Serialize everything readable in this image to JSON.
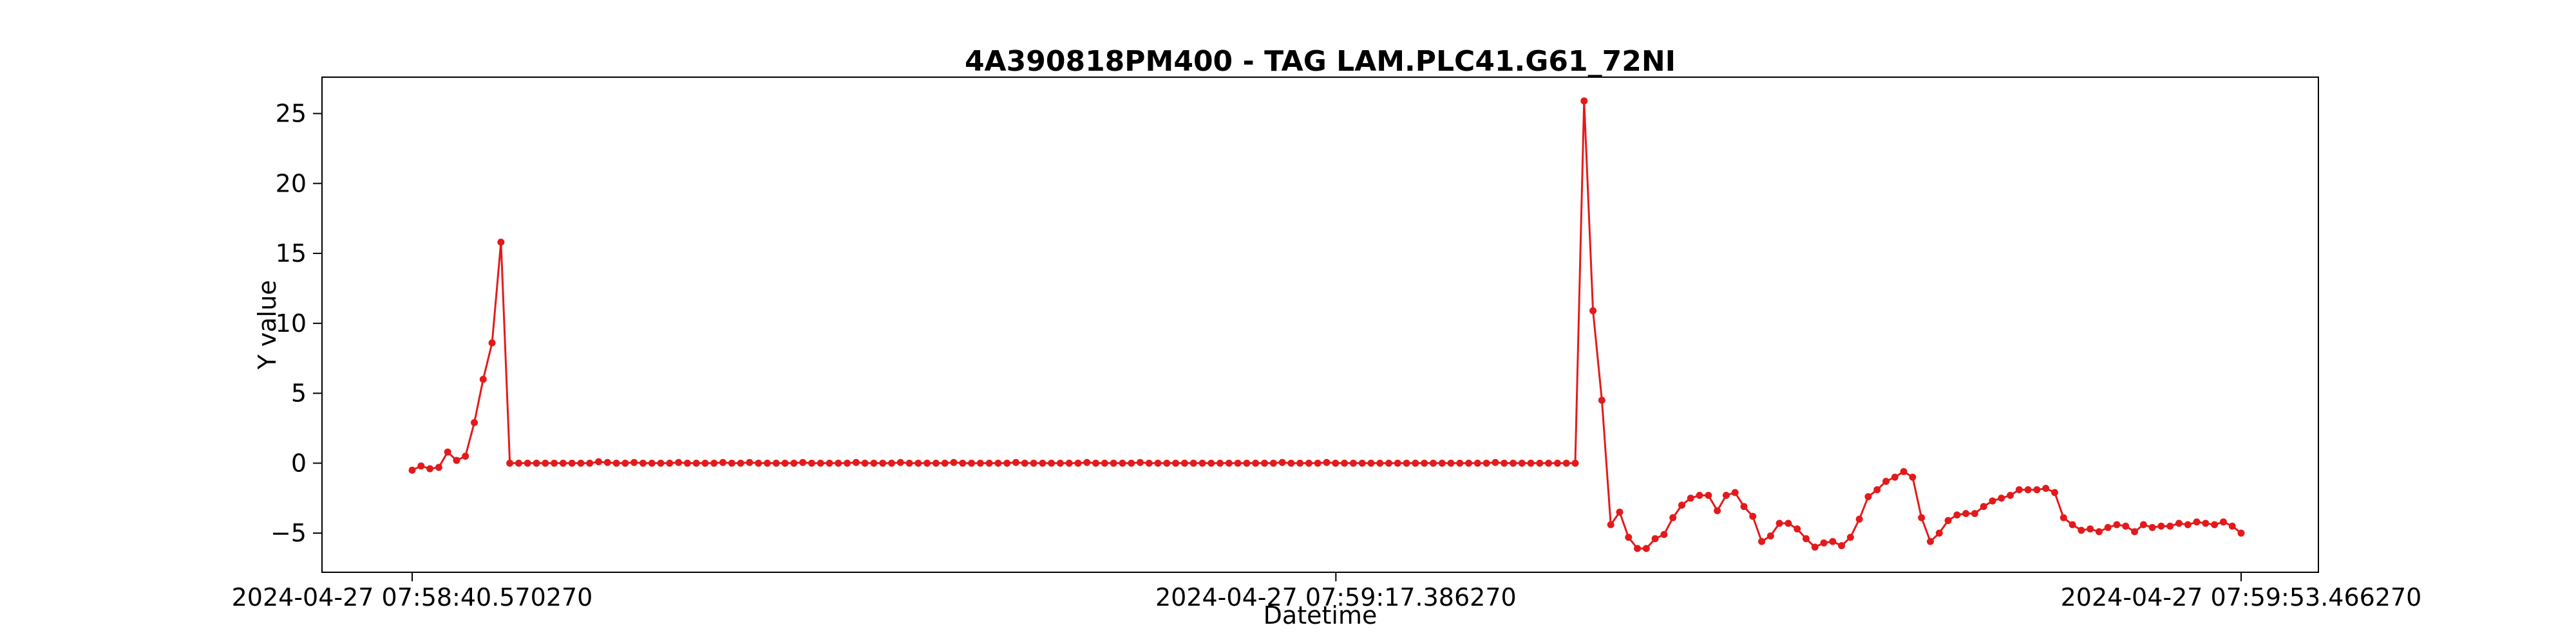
{
  "chart_data": {
    "type": "line",
    "title": "4A390818PM400 - TAG LAM.PLC41.G61_72NI",
    "xlabel": "Datetime",
    "ylabel": "Y value",
    "x_ticks": [
      "2024-04-27 07:58:40.570270",
      "2024-04-27 07:59:17.386270",
      "2024-04-27 07:59:53.466270"
    ],
    "x_range": [
      "2024-04-27 07:58:40.570270",
      "2024-04-27 07:59:53.466270"
    ],
    "y_ticks": [
      -5,
      0,
      5,
      10,
      15,
      20,
      25
    ],
    "ylim": [
      -7.8,
      27.6
    ],
    "grid": false,
    "series": [
      {
        "color": "#e31a1c",
        "marker": "circle",
        "values": [
          -0.5,
          -0.2,
          -0.4,
          -0.3,
          0.8,
          0.2,
          0.5,
          2.9,
          6.0,
          8.6,
          15.8,
          0.0,
          0.0,
          0.0,
          0.0,
          0.0,
          0.0,
          0.0,
          0.0,
          0.0,
          0.0,
          0.1,
          0.05,
          0.0,
          0.0,
          0.05,
          0.0,
          0.0,
          0.0,
          0.0,
          0.05,
          0.0,
          0.0,
          0.0,
          0.0,
          0.05,
          0.0,
          0.0,
          0.05,
          0.0,
          0.0,
          0.0,
          0.0,
          0.0,
          0.05,
          0.0,
          0.0,
          0.0,
          0.0,
          0.0,
          0.05,
          0.0,
          0.0,
          0.0,
          0.0,
          0.05,
          0.0,
          0.0,
          0.0,
          0.0,
          0.0,
          0.05,
          0.0,
          0.0,
          0.0,
          0.0,
          0.0,
          0.0,
          0.05,
          0.0,
          0.0,
          0.0,
          0.0,
          0.0,
          0.0,
          0.0,
          0.05,
          0.0,
          0.0,
          0.0,
          0.0,
          0.0,
          0.05,
          0.0,
          0.0,
          0.0,
          0.0,
          0.0,
          0.0,
          0.0,
          0.0,
          0.0,
          0.0,
          0.0,
          0.0,
          0.0,
          0.0,
          0.0,
          0.05,
          0.0,
          0.0,
          0.0,
          0.0,
          0.05,
          0.0,
          0.0,
          0.0,
          0.0,
          0.0,
          0.0,
          0.0,
          0.0,
          0.0,
          0.0,
          0.0,
          0.0,
          0.0,
          0.0,
          0.0,
          0.0,
          0.0,
          0.0,
          0.05,
          0.0,
          0.0,
          0.0,
          0.0,
          0.0,
          0.0,
          0.0,
          0.0,
          0.0,
          25.9,
          10.9,
          4.5,
          -4.4,
          -3.5,
          -5.3,
          -6.1,
          -6.1,
          -5.4,
          -5.1,
          -3.9,
          -3.0,
          -2.5,
          -2.3,
          -2.3,
          -3.4,
          -2.3,
          -2.1,
          -3.1,
          -3.8,
          -5.6,
          -5.2,
          -4.3,
          -4.3,
          -4.7,
          -5.4,
          -6.0,
          -5.7,
          -5.6,
          -5.9,
          -5.3,
          -4.0,
          -2.4,
          -1.9,
          -1.3,
          -1.0,
          -0.6,
          -1.0,
          -3.9,
          -5.6,
          -5.0,
          -4.1,
          -3.7,
          -3.6,
          -3.6,
          -3.1,
          -2.7,
          -2.5,
          -2.3,
          -1.9,
          -1.9,
          -1.9,
          -1.8,
          -2.1,
          -3.9,
          -4.4,
          -4.8,
          -4.7,
          -4.9,
          -4.6,
          -4.4,
          -4.5,
          -4.9,
          -4.4,
          -4.6,
          -4.5,
          -4.5,
          -4.3,
          -4.4,
          -4.2,
          -4.3,
          -4.4,
          -4.2,
          -4.5,
          -5.0
        ]
      }
    ]
  }
}
